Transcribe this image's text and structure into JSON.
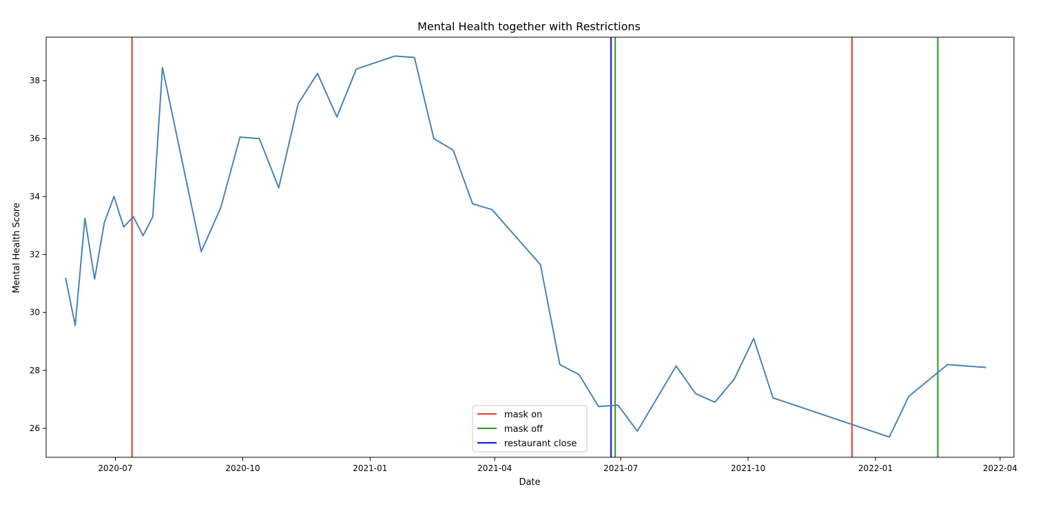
{
  "chart_data": {
    "type": "line",
    "title": "Mental Health together with Restrictions",
    "xlabel": "Date",
    "ylabel": "Mental Health Score",
    "xlim": [
      "2020-05-12",
      "2022-04-11"
    ],
    "ylim": [
      25.0,
      39.5
    ],
    "x_ticks": [
      "2020-07-01",
      "2020-10-01",
      "2021-01-01",
      "2021-04-01",
      "2021-07-01",
      "2021-10-01",
      "2022-01-01",
      "2022-04-01"
    ],
    "x_tick_labels": [
      "2020-07",
      "2020-10",
      "2021-01",
      "2021-04",
      "2021-07",
      "2021-10",
      "2022-01",
      "2022-04"
    ],
    "y_ticks": [
      26,
      28,
      30,
      32,
      34,
      36,
      38
    ],
    "y_tick_labels": [
      "26",
      "28",
      "30",
      "32",
      "34",
      "36",
      "38"
    ],
    "grid": false,
    "legend_position": "bottom-center",
    "series": [
      {
        "color": "#4682b4",
        "x": [
          "2020-05-26",
          "2020-06-02",
          "2020-06-09",
          "2020-06-16",
          "2020-06-23",
          "2020-06-30",
          "2020-07-07",
          "2020-07-14",
          "2020-07-21",
          "2020-07-28",
          "2020-08-04",
          "2020-09-01",
          "2020-09-15",
          "2020-09-29",
          "2020-10-13",
          "2020-10-27",
          "2020-11-10",
          "2020-11-24",
          "2020-12-08",
          "2020-12-22",
          "2021-01-19",
          "2021-02-02",
          "2021-02-16",
          "2021-03-02",
          "2021-03-16",
          "2021-03-30",
          "2021-05-04",
          "2021-05-18",
          "2021-06-01",
          "2021-06-15",
          "2021-06-29",
          "2021-07-13",
          "2021-08-10",
          "2021-08-24",
          "2021-09-07",
          "2021-09-21",
          "2021-10-05",
          "2021-10-19",
          "2022-01-11",
          "2022-01-25",
          "2022-02-22",
          "2022-03-22"
        ],
        "values": [
          31.2,
          29.55,
          33.25,
          31.15,
          33.1,
          34.0,
          32.95,
          33.3,
          32.65,
          33.3,
          38.45,
          32.1,
          33.6,
          36.05,
          36.0,
          34.3,
          37.2,
          38.25,
          36.75,
          38.4,
          38.85,
          38.8,
          36.0,
          35.6,
          33.75,
          33.55,
          31.65,
          28.2,
          27.85,
          26.75,
          26.8,
          25.9,
          28.15,
          27.2,
          26.9,
          27.7,
          29.1,
          27.05,
          25.7,
          27.1,
          28.2,
          28.1
        ]
      }
    ],
    "vlines": [
      {
        "x": "2020-07-13",
        "label": "mask on",
        "color": "#e8463a"
      },
      {
        "x": "2021-06-27",
        "label": "mask off",
        "color": "#3f9a3a"
      },
      {
        "x": "2021-06-24",
        "label": "restaurant close",
        "color": "#1f1fe0"
      },
      {
        "x": "2021-12-15",
        "label": "mask on",
        "color": "#e8463a"
      },
      {
        "x": "2022-02-15",
        "label": "mask off",
        "color": "#3f9a3a"
      }
    ],
    "legend": [
      {
        "label": "mask on",
        "color": "#e8463a"
      },
      {
        "label": "mask off",
        "color": "#3f9a3a"
      },
      {
        "label": "restaurant close",
        "color": "#1f1fe0"
      }
    ]
  }
}
